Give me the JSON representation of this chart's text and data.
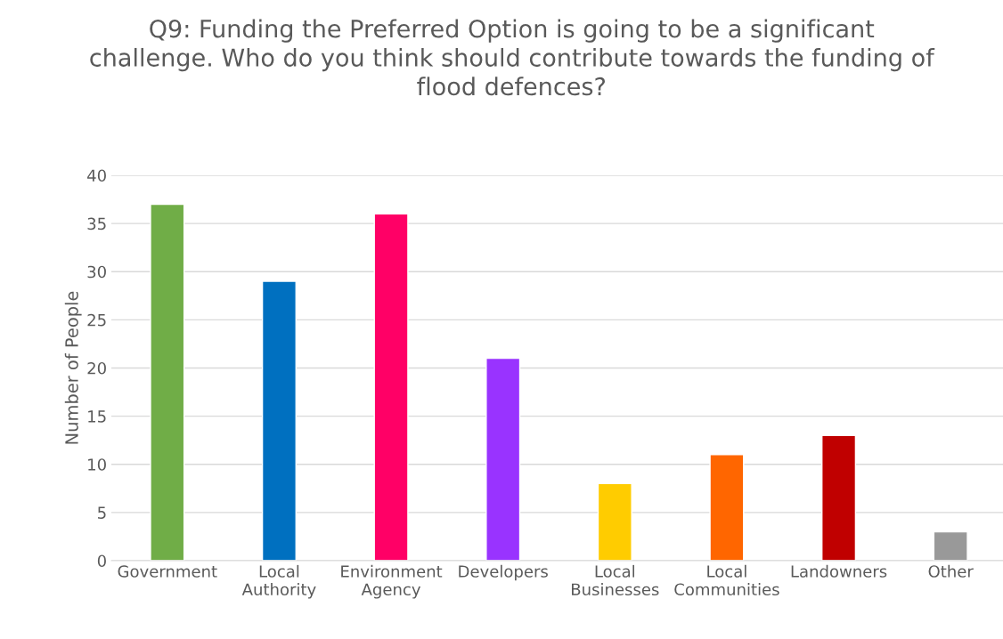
{
  "chart_data": {
    "type": "bar",
    "title": "Q9: Funding the Preferred Option is going to be a significant challenge. Who do you think should contribute towards the funding of flood defences?",
    "ylabel": "Number of People",
    "categories": [
      "Government",
      "Local\nAuthority",
      "Environment\nAgency",
      "Developers",
      "Local\nBusinesses",
      "Local\nCommunities",
      "Landowners",
      "Other"
    ],
    "values": [
      37,
      29,
      36,
      21,
      8,
      11,
      13,
      3
    ],
    "colors": [
      "#70ad47",
      "#0070c0",
      "#ff0066",
      "#9933ff",
      "#ffcc00",
      "#ff6600",
      "#c00000",
      "#999999"
    ],
    "ylim": [
      0,
      40
    ],
    "yticks": [
      0,
      5,
      10,
      15,
      20,
      25,
      30,
      35,
      40
    ],
    "grid": "y",
    "legend": false
  }
}
